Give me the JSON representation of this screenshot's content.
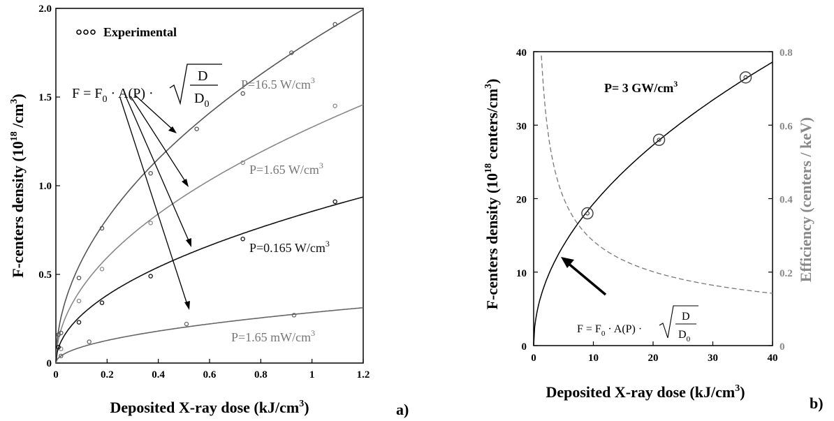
{
  "chart_data": [
    {
      "panel": "a)",
      "type": "scatter",
      "xlabel": "Deposited X-ray dose (kJ/cm",
      "xlabel_sup": "3",
      "xlabel_tail": ")",
      "ylabel": "F-centers density (10",
      "ylabel_sup1": "18",
      "ylabel_mid": " /cm",
      "ylabel_sup2": "3",
      "ylabel_tail": ")",
      "xlim": [
        0,
        1.2
      ],
      "ylim": [
        0,
        2.0
      ],
      "x_ticks": [
        "0",
        "0.2",
        "0.4",
        "0.6",
        "0.8",
        "1",
        "1.2"
      ],
      "y_ticks": [
        "0",
        "0.5",
        "1.0",
        "1.5",
        "2.0"
      ],
      "grid": false,
      "legend": {
        "position": "top-left",
        "label": "Experimental",
        "marker": "ooo"
      },
      "formula": {
        "lhs": "F = F",
        "sub0": "0",
        "mid": " · A(P) ·",
        "num": "D",
        "den": "D",
        "den_sub": "0"
      },
      "series": [
        {
          "name": "P=16.5 W/cm",
          "sup": "3",
          "color": "#555555",
          "k": 1.82,
          "points": [
            [
              0.01,
              0.16
            ],
            [
              0.02,
              0.17
            ],
            [
              0.09,
              0.48
            ],
            [
              0.18,
              0.76
            ],
            [
              0.37,
              1.07
            ],
            [
              0.55,
              1.32
            ],
            [
              0.73,
              1.52
            ],
            [
              0.92,
              1.75
            ],
            [
              1.09,
              1.91
            ]
          ]
        },
        {
          "name": "P=1.65 W/cm",
          "sup": "3",
          "color": "#888888",
          "k": 1.33,
          "points": [
            [
              0.02,
              0.08
            ],
            [
              0.09,
              0.35
            ],
            [
              0.18,
              0.53
            ],
            [
              0.37,
              0.79
            ],
            [
              0.73,
              1.13
            ],
            [
              1.09,
              1.45
            ]
          ]
        },
        {
          "name": "P=0.165 W/cm",
          "sup": "3",
          "color": "#111111",
          "k": 0.855,
          "points": [
            [
              0.01,
              0.09
            ],
            [
              0.09,
              0.23
            ],
            [
              0.18,
              0.34
            ],
            [
              0.37,
              0.49
            ],
            [
              0.73,
              0.7
            ],
            [
              1.09,
              0.91
            ]
          ]
        },
        {
          "name": "P=1.65 mW/cm",
          "sup": "3",
          "color": "#666666",
          "k": 0.285,
          "points": [
            [
              0.02,
              0.04
            ],
            [
              0.13,
              0.12
            ],
            [
              0.51,
              0.22
            ],
            [
              0.93,
              0.27
            ]
          ]
        }
      ]
    },
    {
      "panel": "b)",
      "type": "line",
      "xlabel": "Deposited X-ray dose (kJ/cm",
      "xlabel_sup": "3",
      "xlabel_tail": ")",
      "ylabel": "F-centers density (10",
      "ylabel_sup1": "18",
      "ylabel_mid": " centers/cm",
      "ylabel_sup2": "3",
      "ylabel_tail": ")",
      "y2label": "Efficiency (centers / keV)",
      "xlim": [
        0,
        40
      ],
      "ylim": [
        0,
        40
      ],
      "y2lim": [
        0,
        0.8
      ],
      "x_ticks": [
        "0",
        "10",
        "20",
        "30",
        "40"
      ],
      "y_ticks": [
        "0",
        "10",
        "20",
        "30",
        "40"
      ],
      "y2_ticks": [
        "0",
        "0.2",
        "0.4",
        "0.6",
        "0.8"
      ],
      "grid": false,
      "annotation": {
        "text": "P= 3 GW/cm",
        "sup": "3"
      },
      "formula": {
        "lhs": "F = F",
        "sub0": "0",
        "mid": " · A(P) ·",
        "num": "D",
        "den": "D",
        "den_sub": "0"
      },
      "series": [
        {
          "name": "F-centers density",
          "style": "solid",
          "color": "#000000",
          "k": 6.1,
          "points": [
            [
              9,
              18
            ],
            [
              21,
              28
            ],
            [
              35.5,
              36.5
            ]
          ]
        },
        {
          "name": "Efficiency",
          "style": "dashed",
          "color": "#777777",
          "axis": "right",
          "c": 0.9,
          "x_start": 1.3
        }
      ]
    }
  ]
}
